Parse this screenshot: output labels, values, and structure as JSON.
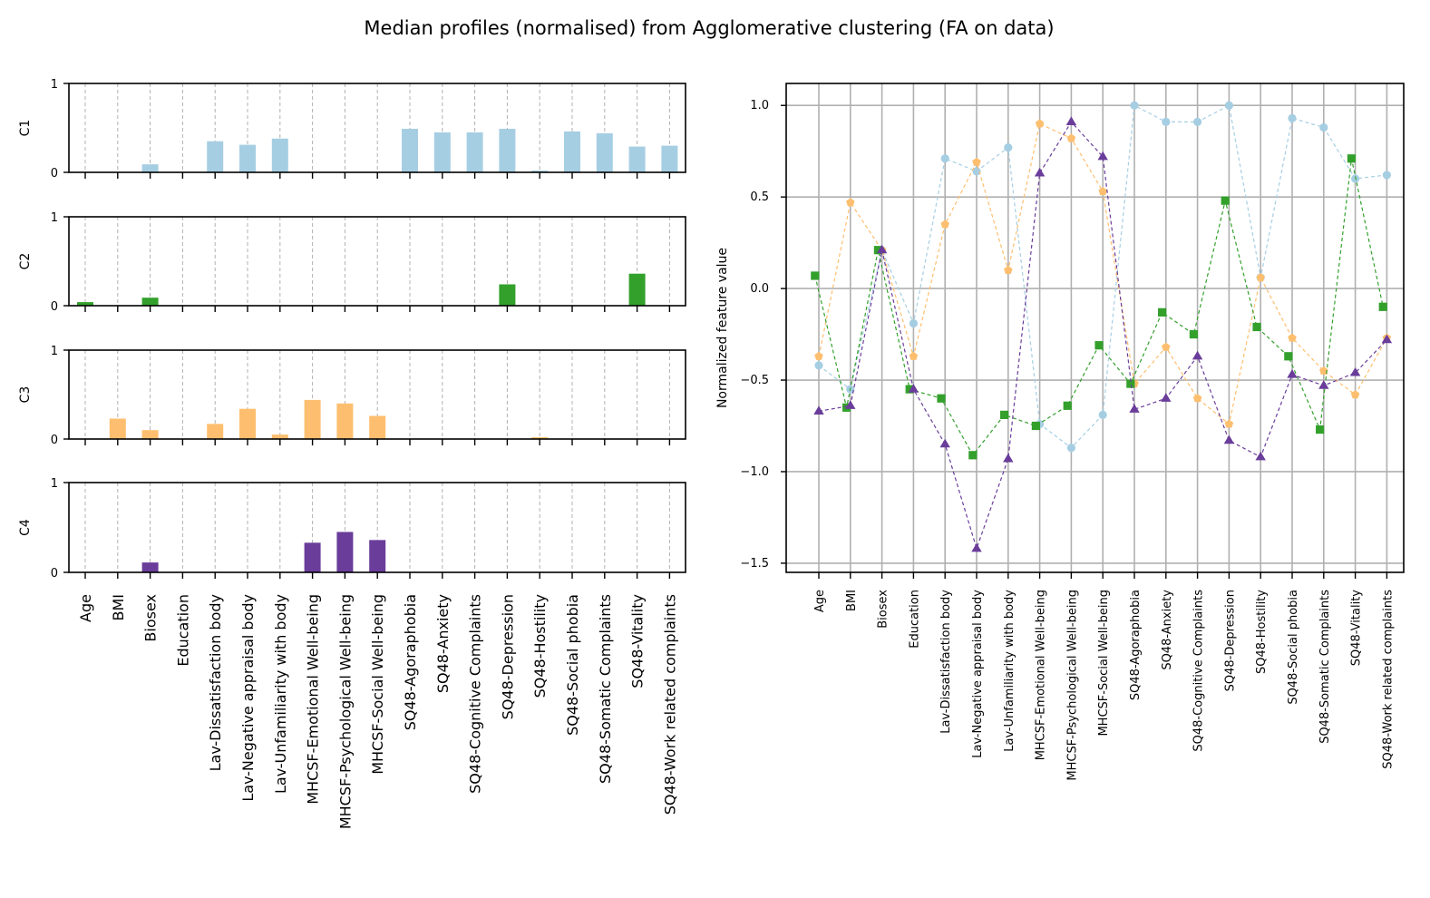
{
  "figure": {
    "title": "Median profiles (normalised) from Agglomerative clustering (FA on data)"
  },
  "chart_data": [
    {
      "type": "bar",
      "panel": "per-cluster median profiles",
      "categories": [
        "Age",
        "BMI",
        "Biosex",
        "Education",
        "Lav-Dissatisfaction body",
        "Lav-Negative appraisal body",
        "Lav-Unfamiliarity with body",
        "MHCSF-Emotional Well-being",
        "MHCSF-Psychological Well-being",
        "MHCSF-Social Well-being",
        "SQ48-Agoraphobia",
        "SQ48-Anxiety",
        "SQ48-Cognitive Complaints",
        "SQ48-Depression",
        "SQ48-Hostility",
        "SQ48-Social phobia",
        "SQ48-Somatic Complaints",
        "SQ48-Vitality",
        "SQ48-Work related complaints"
      ],
      "ylim": [
        0,
        1
      ],
      "yticks": [
        0,
        1
      ],
      "grid": "x dashed",
      "series": [
        {
          "name": "C1",
          "color": "#a6cee3",
          "values": [
            0,
            0,
            0.09,
            0,
            0.35,
            0.31,
            0.38,
            0,
            0,
            0,
            0.49,
            0.45,
            0.45,
            0.49,
            0.02,
            0.46,
            0.44,
            0.29,
            0.3
          ]
        },
        {
          "name": "C2",
          "color": "#33a02c",
          "values": [
            0.04,
            0,
            0.09,
            0,
            0,
            0,
            0,
            0,
            0,
            0,
            0,
            0,
            0,
            0.24,
            0,
            0,
            0,
            0.36,
            0
          ]
        },
        {
          "name": "C3",
          "color": "#fdbf6f",
          "values": [
            0,
            0.23,
            0.1,
            0,
            0.17,
            0.34,
            0.05,
            0.44,
            0.4,
            0.26,
            0,
            0,
            0,
            0,
            0.02,
            0,
            0,
            0,
            0
          ]
        },
        {
          "name": "C4",
          "color": "#6a3d9a",
          "values": [
            0,
            0,
            0.11,
            0,
            0,
            0,
            0,
            0.33,
            0.45,
            0.36,
            0,
            0,
            0,
            0,
            0,
            0,
            0,
            0,
            0
          ]
        }
      ]
    },
    {
      "type": "line",
      "panel": "normalized features",
      "categories": [
        "Age",
        "BMI",
        "Biosex",
        "Education",
        "Lav-Dissatisfaction body",
        "Lav-Negative appraisal body",
        "Lav-Unfamiliarity with body",
        "MHCSF-Emotional Well-being",
        "MHCSF-Psychological Well-being",
        "MHCSF-Social Well-being",
        "SQ48-Agoraphobia",
        "SQ48-Anxiety",
        "SQ48-Cognitive Complaints",
        "SQ48-Depression",
        "SQ48-Hostility",
        "SQ48-Social phobia",
        "SQ48-Somatic Complaints",
        "SQ48-Vitality",
        "SQ48-Work related complaints"
      ],
      "ylabel": "Normalized feature value",
      "ylim": [
        -1.55,
        1.12
      ],
      "yticks": [
        1.0,
        0.5,
        0.0,
        -0.5,
        -1.0,
        -1.5
      ],
      "ytick_labels": [
        "1.0",
        "0.5",
        "0.0",
        "−0.5",
        "−1.0",
        "−1.5"
      ],
      "grid": "on",
      "series": [
        {
          "color": "#a6cee3",
          "marker": "circle",
          "x_offset": 0,
          "values": [
            -0.42,
            -0.55,
            0.21,
            -0.19,
            0.71,
            0.64,
            0.77,
            -0.74,
            -0.87,
            -0.69,
            1.0,
            0.91,
            0.91,
            1.0,
            0.06,
            0.93,
            0.88,
            0.6,
            0.62
          ]
        },
        {
          "color": "#fdbf6f",
          "marker": "pentagon",
          "x_offset": 0,
          "values": [
            -0.37,
            0.47,
            0.21,
            -0.37,
            0.35,
            0.69,
            0.1,
            0.9,
            0.82,
            0.53,
            -0.52,
            -0.32,
            -0.6,
            -0.74,
            0.06,
            -0.27,
            -0.45,
            -0.58,
            -0.27
          ]
        },
        {
          "color": "#33a02c",
          "marker": "square",
          "x_offset": -0.12,
          "values": [
            0.07,
            -0.65,
            0.21,
            -0.55,
            -0.6,
            -0.91,
            -0.69,
            -0.75,
            -0.64,
            -0.31,
            -0.52,
            -0.13,
            -0.25,
            0.48,
            -0.21,
            -0.37,
            -0.77,
            0.71,
            -0.1
          ]
        },
        {
          "color": "#6a3d9a",
          "marker": "triangle",
          "x_offset": 0,
          "values": [
            -0.67,
            -0.64,
            0.21,
            -0.55,
            -0.85,
            -1.42,
            -0.93,
            0.63,
            0.91,
            0.72,
            -0.66,
            -0.6,
            -0.37,
            -0.83,
            -0.92,
            -0.47,
            -0.53,
            -0.46,
            -0.28
          ]
        }
      ]
    }
  ]
}
